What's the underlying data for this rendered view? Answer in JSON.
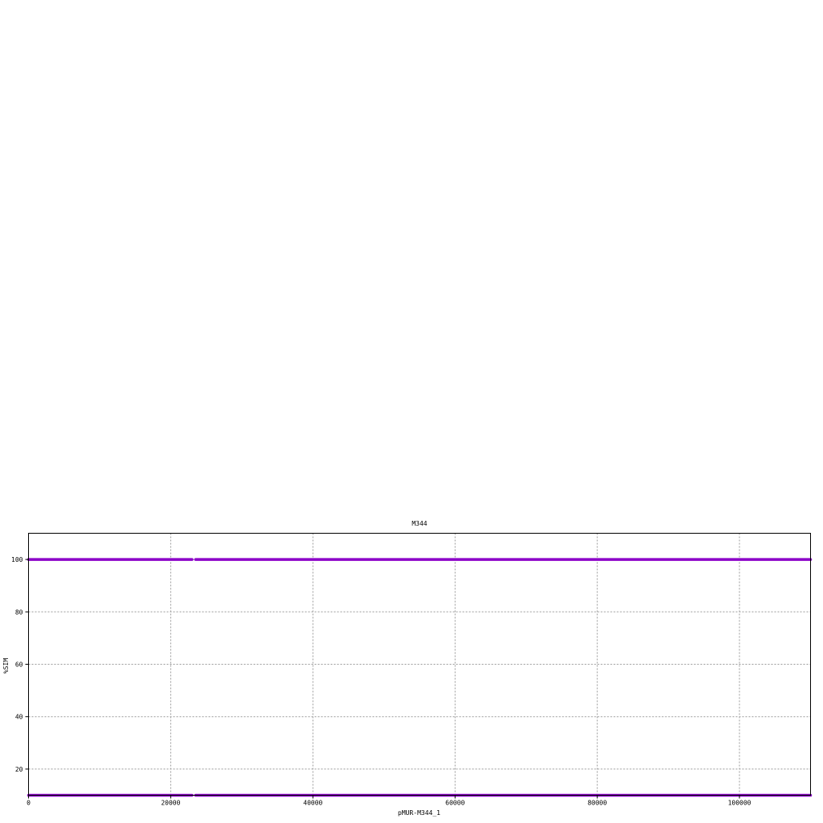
{
  "chart_data": {
    "type": "line",
    "title": "M344",
    "xlabel": "pMUR-M344_1",
    "ylabel": "%SIM",
    "xlim": [
      0,
      110000
    ],
    "ylim": [
      10,
      110
    ],
    "xticks": [
      0,
      20000,
      40000,
      60000,
      80000,
      100000
    ],
    "yticks": [
      20,
      40,
      60,
      80,
      100
    ],
    "grid": true,
    "legend": "none",
    "colors": {
      "series": "#8b00c8",
      "grid": "#999999",
      "axes": "#000000",
      "background": "#ffffff"
    },
    "series": [
      {
        "segments": [
          {
            "x": [
              0,
              23000
            ],
            "y": [
              100,
              100
            ]
          },
          {
            "x": [
              23500,
              110000
            ],
            "y": [
              100,
              100
            ]
          }
        ]
      },
      {
        "segments": [
          {
            "x": [
              0,
              23000
            ],
            "y": [
              10,
              10
            ]
          },
          {
            "x": [
              23500,
              110000
            ],
            "y": [
              10,
              10
            ]
          }
        ]
      }
    ]
  }
}
